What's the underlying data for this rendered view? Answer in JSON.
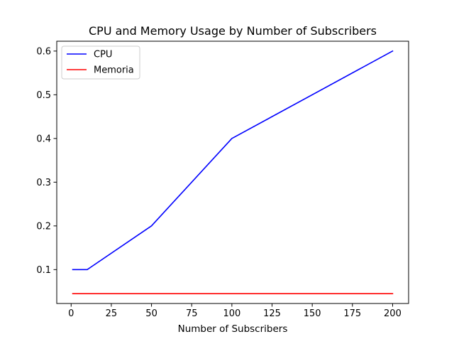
{
  "chart_data": {
    "type": "line",
    "title": "CPU and Memory Usage by Number of Subscribers",
    "xlabel": "Number of Subscribers",
    "ylabel": "",
    "x": [
      1,
      10,
      50,
      100,
      200
    ],
    "series": [
      {
        "name": "CPU",
        "values": [
          0.1,
          0.1,
          0.2,
          0.4,
          0.6
        ],
        "color": "#0000ff"
      },
      {
        "name": "Memoria",
        "values": [
          0.045,
          0.045,
          0.045,
          0.045,
          0.045
        ],
        "color": "#ff0000"
      }
    ],
    "xlim": [
      -8.95,
      209.95
    ],
    "ylim": [
      0.0225,
      0.6225
    ],
    "xticks": [
      0,
      25,
      50,
      75,
      100,
      125,
      150,
      175,
      200
    ],
    "yticks": [
      0.1,
      0.2,
      0.3,
      0.4,
      0.5,
      0.6
    ],
    "ytick_labels": [
      "0.1",
      "0.2",
      "0.3",
      "0.4",
      "0.5",
      "0.6"
    ],
    "grid": false,
    "legend_position": "top-left"
  }
}
